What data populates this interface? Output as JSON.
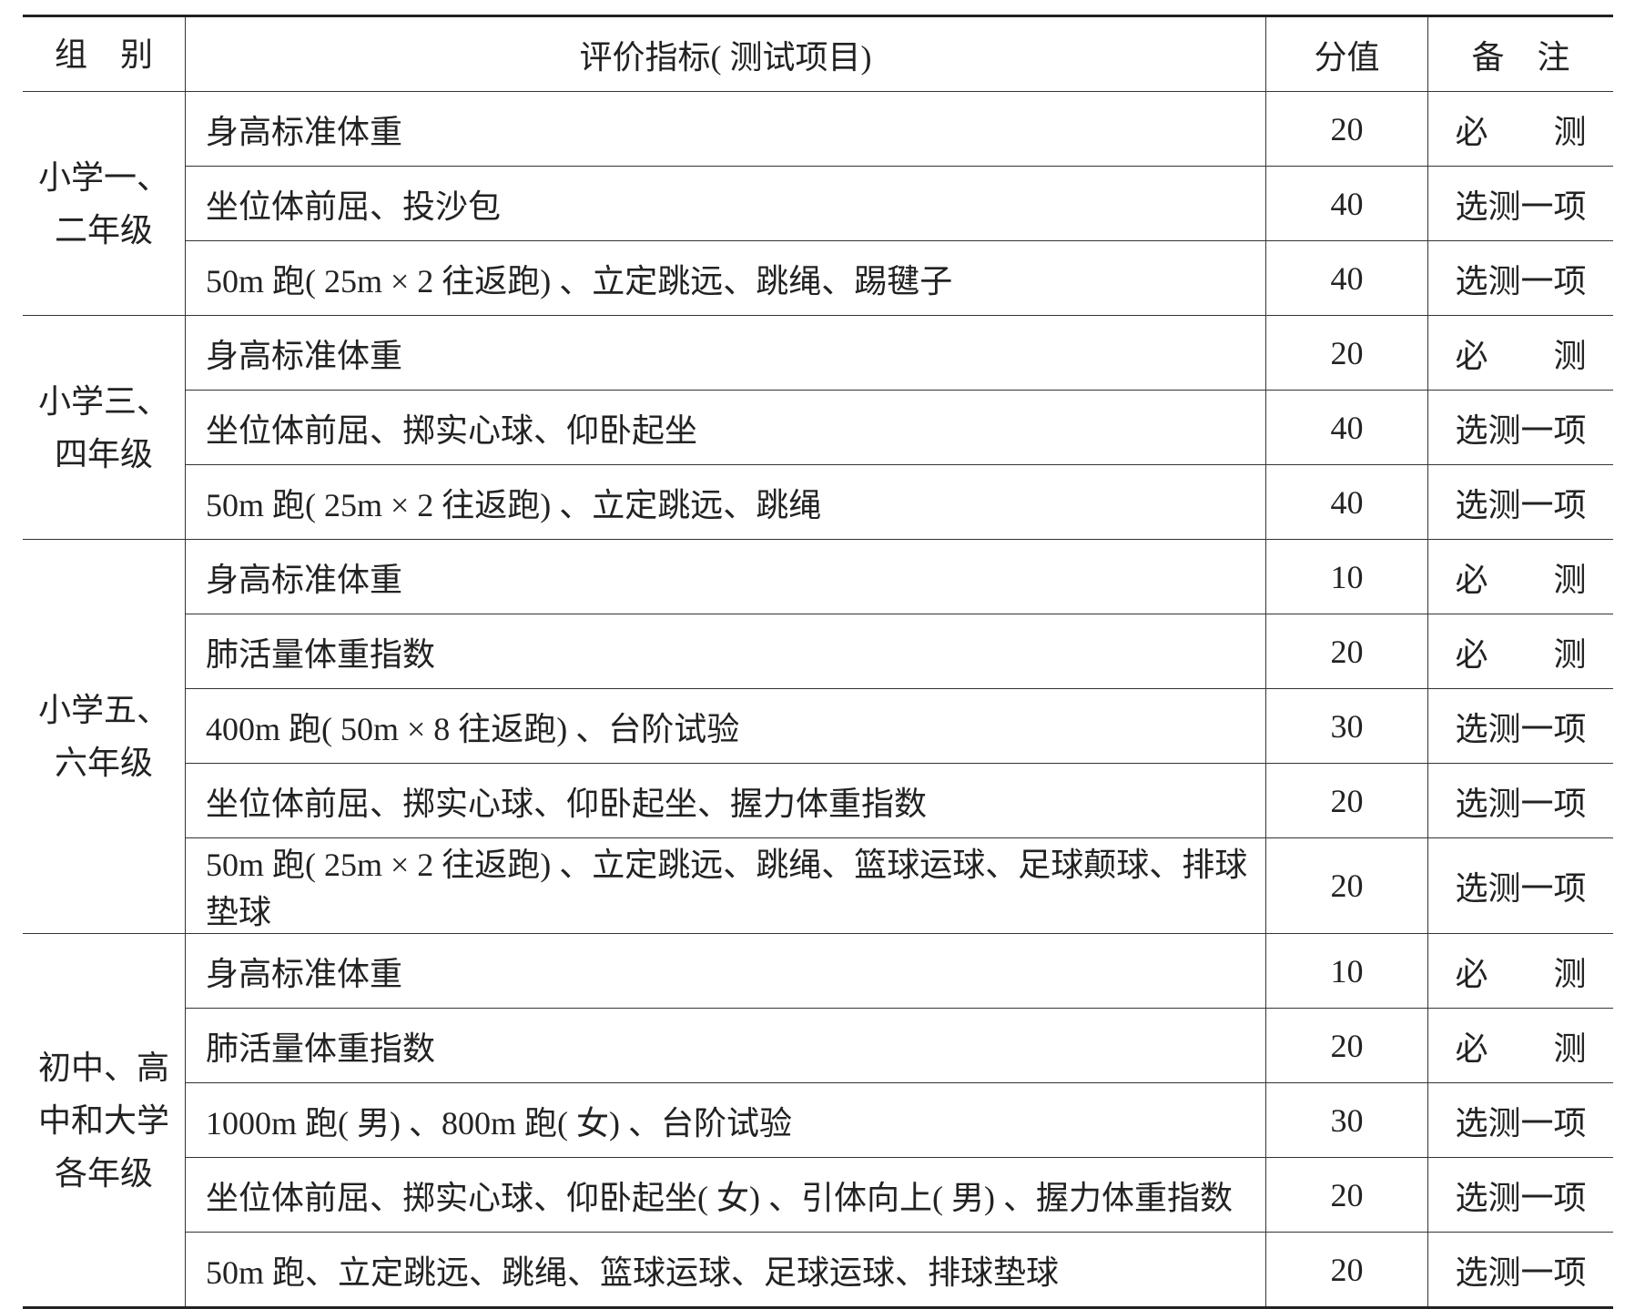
{
  "table": {
    "header": [
      "组　别",
      "评价指标( 测试项目)",
      "分值",
      "备　注"
    ],
    "groups": [
      {
        "name": [
          "小学一、",
          "二年级"
        ],
        "rows": [
          [
            "身高标准体重",
            20,
            "必　　测"
          ],
          [
            "坐位体前屈、投沙包",
            40,
            "选测一项"
          ],
          [
            "50m 跑( 25m × 2 往返跑) 、立定跳远、跳绳、踢毽子",
            40,
            "选测一项"
          ]
        ]
      },
      {
        "name": [
          "小学三、",
          "四年级"
        ],
        "rows": [
          [
            "身高标准体重",
            20,
            "必　　测"
          ],
          [
            "坐位体前屈、掷实心球、仰卧起坐",
            40,
            "选测一项"
          ],
          [
            "50m 跑( 25m × 2 往返跑) 、立定跳远、跳绳",
            40,
            "选测一项"
          ]
        ]
      },
      {
        "name": [
          "小学五、",
          "六年级"
        ],
        "rows": [
          [
            "身高标准体重",
            10,
            "必　　测"
          ],
          [
            "肺活量体重指数",
            20,
            "必　　测"
          ],
          [
            "400m 跑( 50m × 8 往返跑) 、台阶试验",
            30,
            "选测一项"
          ],
          [
            "坐位体前屈、掷实心球、仰卧起坐、握力体重指数",
            20,
            "选测一项"
          ],
          [
            "50m 跑( 25m × 2 往返跑) 、立定跳远、跳绳、篮球运球、足球颠球、排球垫球",
            20,
            "选测一项"
          ]
        ]
      },
      {
        "name": [
          "初中、高",
          "中和大学",
          "各年级"
        ],
        "rows": [
          [
            "身高标准体重",
            10,
            "必　　测"
          ],
          [
            "肺活量体重指数",
            20,
            "必　　测"
          ],
          [
            "1000m 跑( 男) 、800m 跑( 女) 、台阶试验",
            30,
            "选测一项"
          ],
          [
            "坐位体前屈、掷实心球、仰卧起坐( 女) 、引体向上( 男) 、握力体重指数",
            20,
            "选测一项"
          ],
          [
            "50m 跑、立定跳远、跳绳、篮球运球、足球运球、排球垫球",
            20,
            "选测一项"
          ]
        ]
      }
    ]
  }
}
